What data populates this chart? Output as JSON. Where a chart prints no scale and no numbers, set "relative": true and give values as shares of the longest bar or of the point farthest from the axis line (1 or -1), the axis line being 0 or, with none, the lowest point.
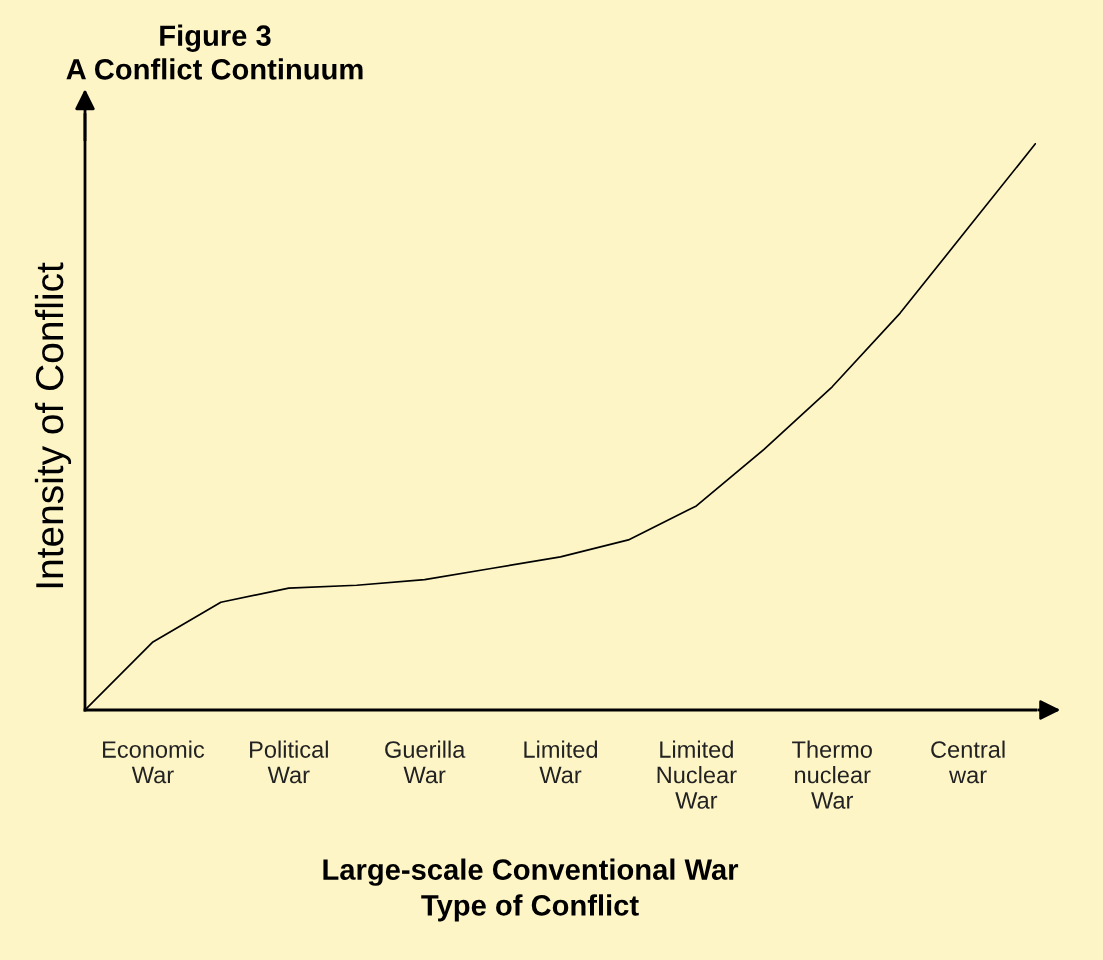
{
  "chart_data": {
    "type": "line",
    "title": "Figure 3\nA Conflict Continuum",
    "xlabel": "Large-scale Conventional War\nType of Conflict",
    "ylabel": "Intensity of Conflict",
    "categories": [
      null,
      "Economic\nWar",
      null,
      "Political\nWar",
      null,
      "Guerilla\nWar",
      null,
      "Limited\nWar",
      null,
      "Limited\nNuclear\nWar",
      null,
      "Thermo\nnuclear\nWar",
      null,
      "Central\nwar",
      null
    ],
    "series": [
      {
        "color": "#000000",
        "values": [
          0,
          0.12,
          0.19,
          0.215,
          0.22,
          0.23,
          0.25,
          0.27,
          0.3,
          0.36,
          0.46,
          0.57,
          0.7,
          0.85,
          1
        ]
      }
    ],
    "relative": true,
    "grid": false,
    "legend": false,
    "marker": "none",
    "line_style": "solid"
  }
}
